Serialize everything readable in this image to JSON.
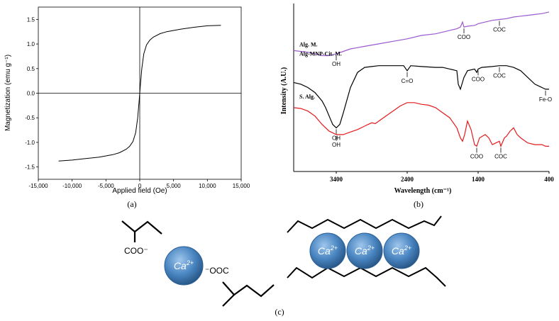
{
  "colors": {
    "axis": "#000000",
    "curve_a": "#000000",
    "alg_m": "#9b59d0",
    "alg_mnp": "#000000",
    "s_alg": "#e41a1c",
    "ion_fill": "#4a86c2",
    "ion_dark": "#2b5f94"
  },
  "chart_data": [
    {
      "id": "a",
      "type": "line",
      "panel_label": "(a)",
      "xlabel": "Applied field (Oe)",
      "ylabel": "Magnetization (emu g⁻¹)",
      "xlim": [
        -15000,
        15000
      ],
      "ylim": [
        -1.75,
        1.75
      ],
      "xticks": [
        -15000,
        -10000,
        -5000,
        0,
        5000,
        10000,
        15000
      ],
      "xtick_labels": [
        "-15,000",
        "-10,000",
        "-5,000",
        "0",
        "5,000",
        "10,000",
        "15,000"
      ],
      "yticks": [
        1.5,
        1.0,
        0.5,
        0.0,
        -0.5,
        -1.0,
        -1.5
      ],
      "ytick_labels": [
        "1.5",
        "1.0",
        "0.5",
        "0.0",
        "-0.5",
        "-1.0",
        "-1.5"
      ],
      "series": [
        {
          "x": [
            -12000,
            -10000,
            -8000,
            -6000,
            -4000,
            -3000,
            -2000,
            -1500,
            -1000,
            -600,
            -300,
            -100,
            0,
            100,
            300,
            600,
            1000,
            1500,
            2000,
            3000,
            4000,
            6000,
            8000,
            10000,
            12000
          ],
          "y": [
            -1.38,
            -1.36,
            -1.33,
            -1.3,
            -1.25,
            -1.21,
            -1.14,
            -1.08,
            -0.98,
            -0.8,
            -0.5,
            -0.18,
            0,
            0.18,
            0.5,
            0.8,
            0.98,
            1.08,
            1.14,
            1.21,
            1.25,
            1.3,
            1.34,
            1.37,
            1.38
          ]
        }
      ]
    },
    {
      "id": "b",
      "type": "line",
      "panel_label": "(b)",
      "xlabel": "Wavelength (cm⁻¹)",
      "ylabel": "Intensity (A.U.)",
      "xlim": [
        4000,
        400
      ],
      "xticks": [
        3400,
        2400,
        1400,
        400
      ],
      "xtick_labels": [
        "3400",
        "2400",
        "1400",
        "400"
      ],
      "series": [
        {
          "name": "Alg. M.",
          "x": [
            4000,
            3800,
            3600,
            3500,
            3400,
            3300,
            3200,
            3000,
            2800,
            2600,
            2400,
            2200,
            2000,
            1800,
            1700,
            1650,
            1620,
            1600,
            1550,
            1450,
            1420,
            1400,
            1300,
            1200,
            1100,
            1000,
            900,
            800,
            700,
            600,
            500,
            400
          ],
          "y": [
            0.72,
            0.71,
            0.69,
            0.69,
            0.7,
            0.715,
            0.73,
            0.745,
            0.76,
            0.775,
            0.79,
            0.81,
            0.82,
            0.84,
            0.85,
            0.86,
            0.89,
            0.86,
            0.865,
            0.87,
            0.875,
            0.88,
            0.89,
            0.9,
            0.905,
            0.91,
            0.92,
            0.925,
            0.93,
            0.935,
            0.94,
            0.95
          ]
        },
        {
          "name": "Alg-MNP-Cit. M.",
          "x": [
            4000,
            3900,
            3800,
            3700,
            3600,
            3550,
            3500,
            3450,
            3400,
            3350,
            3300,
            3200,
            3100,
            3000,
            2900,
            2800,
            2600,
            2450,
            2400,
            2350,
            2200,
            2000,
            1900,
            1800,
            1700,
            1680,
            1650,
            1600,
            1550,
            1450,
            1420,
            1400,
            1350,
            1200,
            1100,
            1000,
            900,
            800,
            700,
            600,
            500,
            450,
            400
          ],
          "y": [
            0.53,
            0.52,
            0.5,
            0.47,
            0.42,
            0.38,
            0.33,
            0.28,
            0.26,
            0.28,
            0.35,
            0.5,
            0.59,
            0.62,
            0.625,
            0.63,
            0.63,
            0.63,
            0.6,
            0.63,
            0.625,
            0.62,
            0.62,
            0.61,
            0.6,
            0.52,
            0.49,
            0.56,
            0.6,
            0.61,
            0.59,
            0.61,
            0.62,
            0.625,
            0.63,
            0.63,
            0.62,
            0.6,
            0.56,
            0.52,
            0.5,
            0.49,
            0.49
          ]
        },
        {
          "name": "S. Alg.",
          "x": [
            4000,
            3900,
            3800,
            3700,
            3600,
            3500,
            3400,
            3300,
            3200,
            3100,
            3000,
            2950,
            2900,
            2850,
            2800,
            2700,
            2600,
            2500,
            2400,
            2300,
            2200,
            2100,
            2000,
            1900,
            1800,
            1700,
            1650,
            1620,
            1590,
            1550,
            1500,
            1450,
            1420,
            1380,
            1300,
            1250,
            1200,
            1150,
            1100,
            1080,
            1030,
            1000,
            950,
            900,
            850,
            800,
            700,
            600,
            500,
            450,
            400
          ],
          "y": [
            0.38,
            0.375,
            0.36,
            0.33,
            0.28,
            0.24,
            0.22,
            0.22,
            0.235,
            0.25,
            0.27,
            0.28,
            0.29,
            0.285,
            0.3,
            0.33,
            0.36,
            0.39,
            0.41,
            0.41,
            0.4,
            0.395,
            0.38,
            0.35,
            0.32,
            0.26,
            0.2,
            0.18,
            0.22,
            0.3,
            0.25,
            0.16,
            0.15,
            0.2,
            0.22,
            0.2,
            0.16,
            0.17,
            0.18,
            0.15,
            0.2,
            0.21,
            0.24,
            0.26,
            0.22,
            0.2,
            0.17,
            0.16,
            0.16,
            0.15,
            0.15
          ]
        }
      ],
      "annotations": [
        {
          "text": "OH",
          "x": 3400,
          "y": 0.7,
          "dir": "down"
        },
        {
          "text": "COO",
          "x": 1600,
          "y": 0.86,
          "dir": "down"
        },
        {
          "text": "COC",
          "x": 1100,
          "y": 0.905,
          "dir": "down"
        },
        {
          "text": "C=O",
          "x": 2400,
          "y": 0.6,
          "dir": "down"
        },
        {
          "text": "COO",
          "x": 1400,
          "y": 0.61,
          "dir": "down"
        },
        {
          "text": "COC",
          "x": 1100,
          "y": 0.63,
          "dir": "down"
        },
        {
          "text": "Fe-O",
          "x": 450,
          "y": 0.49,
          "dir": "down"
        },
        {
          "text": "OH",
          "x": 3400,
          "y": 0.26,
          "dir": "down"
        },
        {
          "text": "OH",
          "x": 3400,
          "y": 0.22,
          "dir": "down"
        },
        {
          "text": "COO",
          "x": 1420,
          "y": 0.15,
          "dir": "down"
        },
        {
          "text": "COC",
          "x": 1080,
          "y": 0.15,
          "dir": "down"
        }
      ]
    }
  ],
  "panel_c": {
    "label": "(c)",
    "ion_label": "Ca",
    "ion_charge": "2+",
    "left_group_text": "COO⁻",
    "right_group_text": "⁻OOC"
  }
}
